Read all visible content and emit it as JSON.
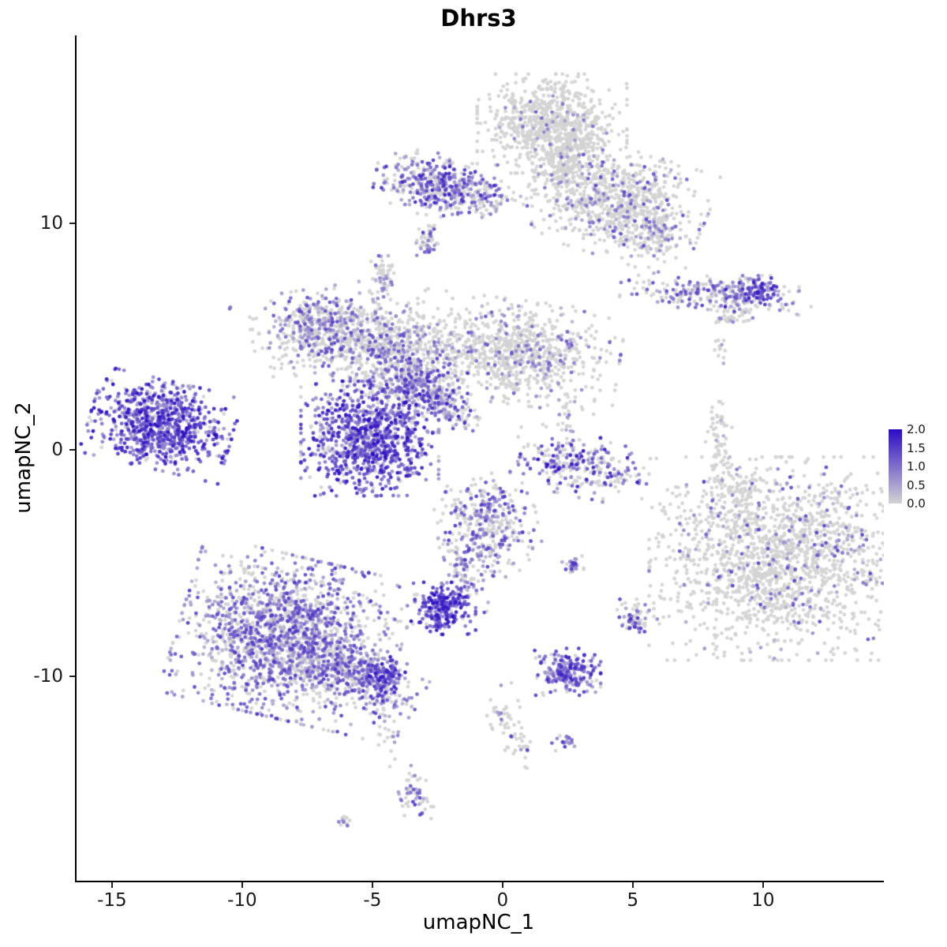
{
  "title": "Dhrs3",
  "chart_data": {
    "type": "scatter",
    "subtype": "umap-feature-plot",
    "title": "Dhrs3",
    "xlabel": "umapNC_1",
    "ylabel": "umapNC_2",
    "x_ticks": [
      -15,
      -10,
      -5,
      0,
      5,
      10
    ],
    "y_ticks": [
      -10,
      0,
      10
    ],
    "xlim": [
      -16.36,
      14.64
    ],
    "ylim": [
      -19.02,
      18.29
    ],
    "grid": false,
    "point_radius_px": 2.4,
    "legend": {
      "position": "right",
      "min": 0.0,
      "max": 2.0,
      "tick_labels": [
        "2.0",
        "1.5",
        "1.0",
        "0.5",
        "0.0"
      ],
      "tick_values": [
        2.0,
        1.5,
        1.0,
        0.5,
        0.0
      ],
      "low_color": "#d3d3d3",
      "high_color": "#2d0bc4"
    },
    "clusters": [
      {
        "name": "top-blob",
        "cx": 1.9,
        "cy": 14.4,
        "sx": 1.25,
        "sy": 0.95,
        "rot": 0,
        "n": 750,
        "frac": 0.05,
        "emin": 0.4,
        "emax": 1.3
      },
      {
        "name": "top-neck",
        "cx": 2.4,
        "cy": 12.6,
        "sx": 0.55,
        "sy": 0.8,
        "rot": 0,
        "n": 200,
        "frac": 0.06,
        "emin": 0.3,
        "emax": 1.0
      },
      {
        "name": "top-right-fan",
        "cx": 4.4,
        "cy": 10.9,
        "sx": 1.5,
        "sy": 1.05,
        "rot": -20,
        "n": 800,
        "frac": 0.16,
        "emin": 0.3,
        "emax": 1.5
      },
      {
        "name": "top-right-tip",
        "cx": 5.9,
        "cy": 9.6,
        "sx": 0.45,
        "sy": 0.45,
        "rot": 0,
        "n": 90,
        "frac": 0.25,
        "emin": 0.3,
        "emax": 1.2
      },
      {
        "name": "top-left-cluster",
        "cx": -2.5,
        "cy": 11.7,
        "sx": 1.05,
        "sy": 0.6,
        "rot": -10,
        "n": 420,
        "frac": 0.6,
        "emin": 0.4,
        "emax": 1.8
      },
      {
        "name": "top-left-trail",
        "cx": -0.9,
        "cy": 11.3,
        "sx": 0.7,
        "sy": 0.4,
        "rot": -15,
        "n": 80,
        "frac": 0.3,
        "emin": 0.3,
        "emax": 1.2
      },
      {
        "name": "small-islet-a",
        "cx": -2.9,
        "cy": 9.2,
        "sx": 0.18,
        "sy": 0.38,
        "rot": 0,
        "n": 45,
        "frac": 0.5,
        "emin": 0.4,
        "emax": 1.6
      },
      {
        "name": "small-islet-b",
        "cx": -4.6,
        "cy": 7.6,
        "sx": 0.22,
        "sy": 0.42,
        "rot": 0,
        "n": 55,
        "frac": 0.45,
        "emin": 0.3,
        "emax": 1.4
      },
      {
        "name": "mid-left-lobe",
        "cx": -7.0,
        "cy": 5.3,
        "sx": 1.15,
        "sy": 0.8,
        "rot": 10,
        "n": 500,
        "frac": 0.45,
        "emin": 0.3,
        "emax": 1.5
      },
      {
        "name": "mid-center",
        "cx": -4.3,
        "cy": 4.5,
        "sx": 1.35,
        "sy": 0.95,
        "rot": 0,
        "n": 650,
        "frac": 0.3,
        "emin": 0.3,
        "emax": 1.4
      },
      {
        "name": "mid-node",
        "cx": -3.3,
        "cy": 2.8,
        "sx": 0.85,
        "sy": 0.7,
        "rot": 0,
        "n": 320,
        "frac": 0.55,
        "emin": 0.4,
        "emax": 1.7
      },
      {
        "name": "mid-bridge",
        "cx": -2.1,
        "cy": 1.9,
        "sx": 0.75,
        "sy": 0.3,
        "rot": -40,
        "n": 130,
        "frac": 0.55,
        "emin": 0.4,
        "emax": 1.8
      },
      {
        "name": "mid-right-lobe",
        "cx": 0.6,
        "cy": 4.3,
        "sx": 1.7,
        "sy": 1.0,
        "rot": -8,
        "n": 800,
        "frac": 0.17,
        "emin": 0.3,
        "emax": 1.3
      },
      {
        "name": "central-dense",
        "cx": -5.1,
        "cy": 0.5,
        "sx": 1.15,
        "sy": 1.1,
        "rot": 0,
        "n": 950,
        "frac": 0.85,
        "emin": 0.5,
        "emax": 2.0
      },
      {
        "name": "far-left-dense",
        "cx": -13.1,
        "cy": 1.1,
        "sx": 1.2,
        "sy": 0.85,
        "rot": -15,
        "n": 850,
        "frac": 0.9,
        "emin": 0.5,
        "emax": 2.0
      },
      {
        "name": "right-arc",
        "cx": 3.0,
        "cy": -0.7,
        "sx": 1.15,
        "sy": 0.6,
        "rot": -15,
        "n": 280,
        "frac": 0.5,
        "emin": 0.4,
        "emax": 2.0
      },
      {
        "name": "sparse-connector",
        "cx": 2.4,
        "cy": 1.6,
        "sx": 0.2,
        "sy": 0.7,
        "rot": 0,
        "n": 25,
        "frac": 0.2,
        "emin": 0.3,
        "emax": 1.2
      },
      {
        "name": "thin-vertical",
        "cx": 8.3,
        "cy": -0.4,
        "sx": 0.22,
        "sy": 1.1,
        "rot": 0,
        "n": 90,
        "frac": 0.1,
        "emin": 0.3,
        "emax": 1.0
      },
      {
        "name": "right-neck",
        "cx": 9.2,
        "cy": -2.0,
        "sx": 0.3,
        "sy": 0.7,
        "rot": 0,
        "n": 50,
        "frac": 0.1,
        "emin": 0.3,
        "emax": 1.0
      },
      {
        "name": "right-top-strip",
        "cx": 8.2,
        "cy": 6.9,
        "sx": 1.6,
        "sy": 0.32,
        "rot": -5,
        "n": 230,
        "frac": 0.4,
        "emin": 0.3,
        "emax": 1.6
      },
      {
        "name": "right-top-dense-tip",
        "cx": 9.7,
        "cy": 7.0,
        "sx": 0.5,
        "sy": 0.3,
        "rot": 0,
        "n": 130,
        "frac": 0.8,
        "emin": 0.5,
        "emax": 1.9
      },
      {
        "name": "right-strip-below",
        "cx": 8.8,
        "cy": 5.9,
        "sx": 0.35,
        "sy": 0.25,
        "rot": 0,
        "n": 40,
        "frac": 0.15,
        "emin": 0.3,
        "emax": 1.0
      },
      {
        "name": "right-dots",
        "cx": 8.3,
        "cy": 4.4,
        "sx": 0.12,
        "sy": 0.3,
        "rot": 0,
        "n": 12,
        "frac": 0.2,
        "emin": 0.3,
        "emax": 0.8
      },
      {
        "name": "big-right-blob",
        "cx": 10.8,
        "cy": -4.8,
        "sx": 2.25,
        "sy": 1.95,
        "rot": 0,
        "n": 1700,
        "frac": 0.13,
        "emin": 0.3,
        "emax": 1.5
      },
      {
        "name": "lower-center",
        "cx": -0.6,
        "cy": -3.4,
        "sx": 0.85,
        "sy": 1.0,
        "rot": 10,
        "n": 380,
        "frac": 0.5,
        "emin": 0.3,
        "emax": 1.6
      },
      {
        "name": "lower-center-stem",
        "cx": -1.5,
        "cy": -5.6,
        "sx": 0.3,
        "sy": 0.8,
        "rot": 25,
        "n": 70,
        "frac": 0.5,
        "emin": 0.3,
        "emax": 1.5
      },
      {
        "name": "bright-small",
        "cx": -2.3,
        "cy": -7.0,
        "sx": 0.55,
        "sy": 0.5,
        "rot": 0,
        "n": 240,
        "frac": 0.92,
        "emin": 0.7,
        "emax": 2.0
      },
      {
        "name": "tiny-pair",
        "cx": 2.7,
        "cy": -5.1,
        "sx": 0.18,
        "sy": 0.18,
        "rot": 0,
        "n": 28,
        "frac": 0.6,
        "emin": 0.4,
        "emax": 1.6
      },
      {
        "name": "small-right-mid",
        "cx": 5.0,
        "cy": -7.4,
        "sx": 0.35,
        "sy": 0.35,
        "rot": 0,
        "n": 70,
        "frac": 0.55,
        "emin": 0.4,
        "emax": 1.7
      },
      {
        "name": "bottom-left-large",
        "cx": -8.2,
        "cy": -8.3,
        "sx": 1.85,
        "sy": 1.55,
        "rot": -15,
        "n": 1900,
        "frac": 0.6,
        "emin": 0.3,
        "emax": 1.6
      },
      {
        "name": "bottom-left-tail",
        "cx": -5.4,
        "cy": -10.1,
        "sx": 1.05,
        "sy": 0.55,
        "rot": -25,
        "n": 320,
        "frac": 0.55,
        "emin": 0.3,
        "emax": 1.6
      },
      {
        "name": "tail-bright-tip",
        "cx": -4.5,
        "cy": -9.9,
        "sx": 0.4,
        "sy": 0.35,
        "rot": 0,
        "n": 90,
        "frac": 0.85,
        "emin": 0.6,
        "emax": 2.0
      },
      {
        "name": "tail-dots",
        "cx": -4.4,
        "cy": -12.4,
        "sx": 0.18,
        "sy": 0.9,
        "rot": 5,
        "n": 28,
        "frac": 0.3,
        "emin": 0.3,
        "emax": 1.3
      },
      {
        "name": "bottom-center-cluster",
        "cx": 2.5,
        "cy": -9.8,
        "sx": 0.55,
        "sy": 0.45,
        "rot": 0,
        "n": 210,
        "frac": 0.8,
        "emin": 0.5,
        "emax": 1.8
      },
      {
        "name": "sparse-diagonal",
        "cx": 0.3,
        "cy": -12.2,
        "sx": 0.3,
        "sy": 0.85,
        "rot": 20,
        "n": 65,
        "frac": 0.15,
        "emin": 0.4,
        "emax": 1.6
      },
      {
        "name": "tiny-bottom",
        "cx": 2.4,
        "cy": -12.9,
        "sx": 0.22,
        "sy": 0.18,
        "rot": 0,
        "n": 20,
        "frac": 0.7,
        "emin": 0.5,
        "emax": 1.7
      },
      {
        "name": "bottom-small",
        "cx": -3.4,
        "cy": -15.2,
        "sx": 0.28,
        "sy": 0.55,
        "rot": 10,
        "n": 55,
        "frac": 0.5,
        "emin": 0.4,
        "emax": 1.6
      },
      {
        "name": "bottom-tiny",
        "cx": -6.0,
        "cy": -16.4,
        "sx": 0.18,
        "sy": 0.12,
        "rot": 0,
        "n": 12,
        "frac": 0.6,
        "emin": 0.5,
        "emax": 1.5
      },
      {
        "name": "lone-dot",
        "cx": -10.5,
        "cy": 6.3,
        "sx": 0.05,
        "sy": 0.05,
        "rot": 0,
        "n": 2,
        "frac": 1.0,
        "emin": 0.8,
        "emax": 1.4
      }
    ]
  }
}
